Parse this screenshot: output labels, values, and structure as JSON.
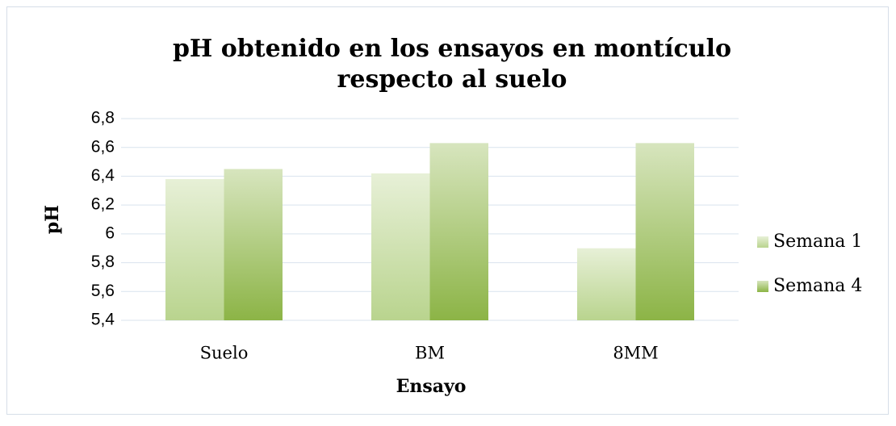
{
  "chart_data": {
    "type": "bar",
    "title": [
      "pH obtenido en los ensayos en montículo",
      "respecto al suelo"
    ],
    "x_label": "Ensayo",
    "y_label": "pH",
    "categories": [
      "Suelo",
      "BM",
      "8MM"
    ],
    "series": [
      {
        "name": "Semana 1",
        "color": "#b9d48e",
        "values": [
          6.38,
          6.42,
          5.9
        ]
      },
      {
        "name": "Semana 4",
        "color": "#8cb446",
        "values": [
          6.45,
          6.63,
          6.63
        ]
      }
    ],
    "ylim": [
      5.4,
      6.8
    ],
    "yticks": [
      {
        "value": 5.4,
        "label": "5,4"
      },
      {
        "value": 5.6,
        "label": "5,6"
      },
      {
        "value": 5.8,
        "label": "5,8"
      },
      6,
      {
        "value": 6.2,
        "label": "6,2"
      },
      {
        "value": 6.4,
        "label": "6,4"
      },
      {
        "value": 6.6,
        "label": "6,6"
      },
      {
        "value": 6.8,
        "label": "6,8"
      }
    ],
    "grid": true,
    "legend": "right"
  }
}
